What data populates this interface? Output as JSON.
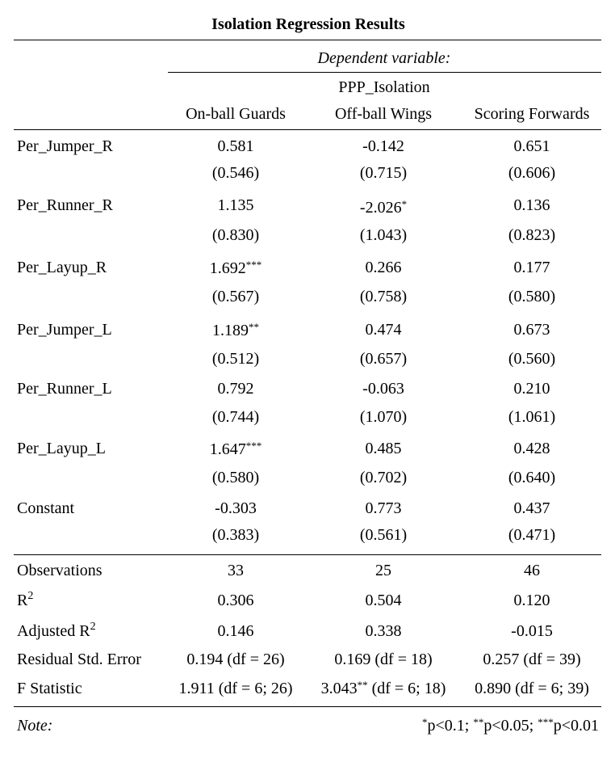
{
  "title": "Isolation Regression Results",
  "dependent_variable_label": "Dependent variable:",
  "dependent_variable_name": "PPP_Isolation",
  "columns": [
    "On-ball Guards",
    "Off-ball Wings",
    "Scoring Forwards"
  ],
  "rows": [
    {
      "label": "Per_Jumper_R",
      "coef": [
        "0.581",
        "-0.142",
        "0.651"
      ],
      "stars": [
        "",
        "",
        ""
      ],
      "se": [
        "(0.546)",
        "(0.715)",
        "(0.606)"
      ]
    },
    {
      "label": "Per_Runner_R",
      "coef": [
        "1.135",
        "-2.026",
        "0.136"
      ],
      "stars": [
        "",
        "*",
        ""
      ],
      "se": [
        "(0.830)",
        "(1.043)",
        "(0.823)"
      ]
    },
    {
      "label": "Per_Layup_R",
      "coef": [
        "1.692",
        "0.266",
        "0.177"
      ],
      "stars": [
        "***",
        "",
        ""
      ],
      "se": [
        "(0.567)",
        "(0.758)",
        "(0.580)"
      ]
    },
    {
      "label": "Per_Jumper_L",
      "coef": [
        "1.189",
        "0.474",
        "0.673"
      ],
      "stars": [
        "**",
        "",
        ""
      ],
      "se": [
        "(0.512)",
        "(0.657)",
        "(0.560)"
      ]
    },
    {
      "label": "Per_Runner_L",
      "coef": [
        "0.792",
        "-0.063",
        "0.210"
      ],
      "stars": [
        "",
        "",
        ""
      ],
      "se": [
        "(0.744)",
        "(1.070)",
        "(1.061)"
      ]
    },
    {
      "label": "Per_Layup_L",
      "coef": [
        "1.647",
        "0.485",
        "0.428"
      ],
      "stars": [
        "***",
        "",
        ""
      ],
      "se": [
        "(0.580)",
        "(0.702)",
        "(0.640)"
      ]
    },
    {
      "label": "Constant",
      "coef": [
        "-0.303",
        "0.773",
        "0.437"
      ],
      "stars": [
        "",
        "",
        ""
      ],
      "se": [
        "(0.383)",
        "(0.561)",
        "(0.471)"
      ]
    }
  ],
  "stats": [
    {
      "label": "Observations",
      "values": [
        "33",
        "25",
        "46"
      ]
    },
    {
      "label": "R",
      "label_sup": "2",
      "values": [
        "0.306",
        "0.504",
        "0.120"
      ]
    },
    {
      "label": "Adjusted R",
      "label_sup": "2",
      "values": [
        "0.146",
        "0.338",
        "-0.015"
      ]
    },
    {
      "label": "Residual Std. Error",
      "values": [
        "0.194 (df = 26)",
        "0.169 (df = 18)",
        "0.257 (df = 39)"
      ]
    }
  ],
  "f_statistic": {
    "label": "F Statistic",
    "cells": [
      {
        "main": "1.911",
        "stars": "",
        "df": " (df = 6; 26)"
      },
      {
        "main": "3.043",
        "stars": "**",
        "df": " (df = 6; 18)"
      },
      {
        "main": "0.890",
        "stars": "",
        "df": " (df = 6; 39)"
      }
    ]
  },
  "note": {
    "label": "Note:",
    "items": [
      {
        "stars": "*",
        "text": "p<0.1;"
      },
      {
        "stars": "**",
        "text": "p<0.05;"
      },
      {
        "stars": "***",
        "text": "p<0.01"
      }
    ]
  }
}
